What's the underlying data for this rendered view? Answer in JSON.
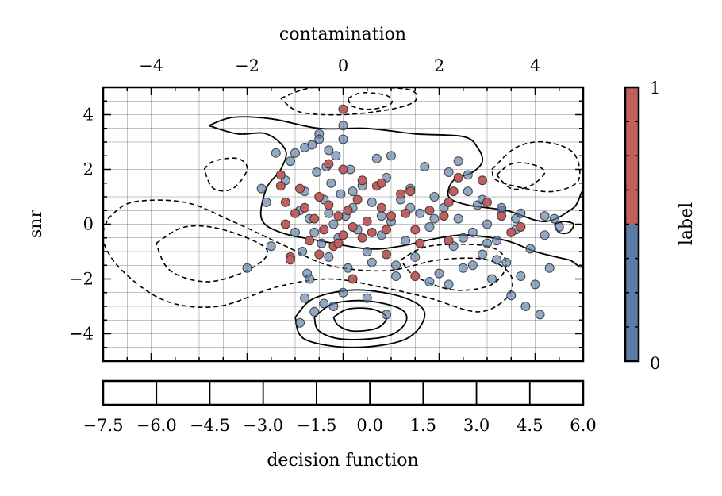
{
  "chart_data": {
    "type": "scatter",
    "xlabel_top": "contamination",
    "ylabel": "snr",
    "xlim": [
      -5,
      5
    ],
    "ylim": [
      -5,
      5
    ],
    "x_ticks": [
      "−4",
      "−2",
      "0",
      "2",
      "4"
    ],
    "x_tick_values": [
      -4,
      -2,
      0,
      2,
      4
    ],
    "y_ticks": [
      "4",
      "2",
      "0",
      "−2",
      "−4"
    ],
    "y_tick_values": [
      4,
      2,
      0,
      -2,
      -4
    ],
    "grid": true,
    "contours": {
      "solid": [
        [
          [
            -2.8,
            3.6
          ],
          [
            -2.3,
            3.9
          ],
          [
            -1.5,
            3.85
          ],
          [
            -0.5,
            3.5
          ],
          [
            0.5,
            3.5
          ],
          [
            1.5,
            3.3
          ],
          [
            2.5,
            3.2
          ],
          [
            2.8,
            2.8
          ],
          [
            2.9,
            2.3
          ],
          [
            2.7,
            1.9
          ],
          [
            2.3,
            1.6
          ],
          [
            2.2,
            1.0
          ],
          [
            2.6,
            0.7
          ],
          [
            3.4,
            0.5
          ],
          [
            4.2,
            0.1
          ],
          [
            4.8,
            0.6
          ],
          [
            5,
            1.1
          ],
          [
            5,
            -1.4
          ],
          [
            4.7,
            -1.3
          ],
          [
            4.0,
            -1.0
          ],
          [
            3.4,
            -0.6
          ],
          [
            2.6,
            -0.4
          ],
          [
            2.0,
            -0.5
          ],
          [
            1.2,
            -0.8
          ],
          [
            0.5,
            -0.9
          ],
          [
            -0.5,
            -0.6
          ],
          [
            -1.3,
            -0.3
          ],
          [
            -1.7,
            0.2
          ],
          [
            -1.6,
            1.3
          ],
          [
            -1.3,
            2.0
          ],
          [
            -1.2,
            2.7
          ],
          [
            -1.6,
            3.3
          ],
          [
            -2.2,
            3.3
          ],
          [
            -2.8,
            3.6
          ]
        ],
        [
          [
            -1.0,
            -3.4
          ],
          [
            -0.6,
            -2.7
          ],
          [
            0.3,
            -2.4
          ],
          [
            1.3,
            -2.7
          ],
          [
            1.7,
            -3.3
          ],
          [
            1.3,
            -4.2
          ],
          [
            0.2,
            -4.5
          ],
          [
            -0.8,
            -4.2
          ],
          [
            -1.0,
            -3.4
          ]
        ],
        [
          [
            -0.6,
            -3.4
          ],
          [
            -0.2,
            -2.9
          ],
          [
            0.5,
            -2.8
          ],
          [
            1.2,
            -3.1
          ],
          [
            1.3,
            -3.6
          ],
          [
            0.9,
            -4.1
          ],
          [
            0,
            -4.2
          ],
          [
            -0.5,
            -3.9
          ],
          [
            -0.6,
            -3.4
          ]
        ],
        [
          [
            -0.2,
            -3.4
          ],
          [
            0.1,
            -3.1
          ],
          [
            0.6,
            -3.1
          ],
          [
            0.9,
            -3.4
          ],
          [
            0.7,
            -3.8
          ],
          [
            0.2,
            -3.9
          ],
          [
            -0.1,
            -3.7
          ],
          [
            -0.2,
            -3.4
          ]
        ],
        [
          [
            4.4,
            0.0
          ],
          [
            4.6,
            0.1
          ],
          [
            4.8,
            0.0
          ],
          [
            4.7,
            -0.3
          ],
          [
            4.5,
            -0.3
          ],
          [
            4.4,
            0.0
          ]
        ]
      ],
      "dashed": [
        [
          [
            -1.3,
            4.6
          ],
          [
            -0.6,
            5.0
          ],
          [
            0.6,
            5.0
          ],
          [
            1.4,
            4.9
          ],
          [
            1.5,
            4.5
          ],
          [
            1.0,
            4.2
          ],
          [
            0,
            4.0
          ],
          [
            -0.9,
            4.1
          ],
          [
            -1.3,
            4.6
          ]
        ],
        [
          [
            0.1,
            4.6
          ],
          [
            0.4,
            4.8
          ],
          [
            0.9,
            4.7
          ],
          [
            1.0,
            4.4
          ],
          [
            0.6,
            4.2
          ],
          [
            0.2,
            4.3
          ],
          [
            0.1,
            4.6
          ]
        ],
        [
          [
            -2.9,
            2.0
          ],
          [
            -2.7,
            2.3
          ],
          [
            -2.2,
            2.4
          ],
          [
            -2.0,
            2.0
          ],
          [
            -2.3,
            1.3
          ],
          [
            -2.7,
            1.3
          ],
          [
            -2.9,
            2.0
          ]
        ],
        [
          [
            -4.9,
            0.2
          ],
          [
            -4.4,
            0.8
          ],
          [
            -3.3,
            0.8
          ],
          [
            -2.3,
            0.1
          ],
          [
            -1.2,
            -0.8
          ],
          [
            -0.3,
            -1.5
          ],
          [
            0.9,
            -1.7
          ],
          [
            2.0,
            -1.3
          ],
          [
            3.0,
            -1.3
          ],
          [
            3.5,
            -1.9
          ],
          [
            3.4,
            -2.7
          ],
          [
            2.8,
            -3.2
          ],
          [
            1.8,
            -2.7
          ],
          [
            0.8,
            -2.3
          ],
          [
            -0.3,
            -2.0
          ],
          [
            -1.4,
            -2.3
          ],
          [
            -2.6,
            -3.0
          ],
          [
            -3.7,
            -2.8
          ],
          [
            -4.6,
            -1.7
          ],
          [
            -5,
            -0.6
          ],
          [
            -4.9,
            0.2
          ]
        ],
        [
          [
            -3.9,
            -0.7
          ],
          [
            -3.3,
            -0.1
          ],
          [
            -2.5,
            -0.2
          ],
          [
            -1.6,
            -0.9
          ],
          [
            -1.9,
            -1.6
          ],
          [
            -2.8,
            -2.1
          ],
          [
            -3.6,
            -1.7
          ],
          [
            -3.9,
            -0.7
          ]
        ],
        [
          [
            1.2,
            -1.3
          ],
          [
            1.8,
            -0.8
          ],
          [
            3.0,
            -0.8
          ],
          [
            3.4,
            -1.4
          ],
          [
            3.1,
            -2.2
          ],
          [
            2.3,
            -2.4
          ],
          [
            1.5,
            -1.9
          ],
          [
            1.2,
            -1.3
          ]
        ],
        [
          [
            3.1,
            2.0
          ],
          [
            3.6,
            2.8
          ],
          [
            4.2,
            3.0
          ],
          [
            4.8,
            2.6
          ],
          [
            4.9,
            1.6
          ],
          [
            4.4,
            1.2
          ],
          [
            3.8,
            1.3
          ],
          [
            3.2,
            1.6
          ],
          [
            3.1,
            2.0
          ]
        ],
        [
          [
            3.2,
            1.8
          ],
          [
            3.5,
            2.2
          ],
          [
            3.9,
            2.2
          ],
          [
            4.2,
            1.9
          ],
          [
            3.9,
            1.4
          ],
          [
            3.5,
            1.3
          ],
          [
            3.2,
            1.8
          ]
        ]
      ]
    },
    "series": [
      {
        "label": "0",
        "color": "#5a7ba6",
        "points": [
          [
            -1.2,
            1.6
          ],
          [
            -1.1,
            2.3
          ],
          [
            -1.0,
            2.6
          ],
          [
            -0.9,
            0.5
          ],
          [
            -0.85,
            -1.0
          ],
          [
            -0.8,
            1.2
          ],
          [
            -0.75,
            -1.8
          ],
          [
            -0.7,
            0.2
          ],
          [
            -0.65,
            2.9
          ],
          [
            -0.6,
            -0.3
          ],
          [
            -0.55,
            1.9
          ],
          [
            -0.5,
            3.3
          ],
          [
            -0.45,
            -0.7
          ],
          [
            -0.4,
            0.9
          ],
          [
            -0.35,
            2.1
          ],
          [
            -0.3,
            -1.2
          ],
          [
            -0.25,
            1.5
          ],
          [
            -0.2,
            0.0
          ],
          [
            -0.15,
            2.5
          ],
          [
            -0.1,
            -0.5
          ],
          [
            -0.05,
            1.1
          ],
          [
            0.0,
            3.1
          ],
          [
            0.05,
            0.3
          ],
          [
            0.1,
            -1.6
          ],
          [
            0.15,
            2.0
          ],
          [
            0.2,
            0.6
          ],
          [
            0.3,
            -0.2
          ],
          [
            0.4,
            1.4
          ],
          [
            0.5,
            -1.0
          ],
          [
            0.6,
            0.8
          ],
          [
            0.7,
            2.4
          ],
          [
            0.8,
            -0.4
          ],
          [
            0.9,
            1.7
          ],
          [
            1.0,
            0.1
          ],
          [
            1.1,
            -1.5
          ],
          [
            1.2,
            0.9
          ],
          [
            1.3,
            -0.6
          ],
          [
            1.4,
            1.3
          ],
          [
            1.5,
            -1.2
          ],
          [
            1.6,
            0.4
          ],
          [
            1.7,
            2.1
          ],
          [
            1.8,
            -0.1
          ],
          [
            1.9,
            1.0
          ],
          [
            2.0,
            -1.8
          ],
          [
            2.1,
            0.6
          ],
          [
            2.2,
            1.9
          ],
          [
            2.3,
            -0.8
          ],
          [
            2.4,
            0.2
          ],
          [
            2.5,
            -1.6
          ],
          [
            2.6,
            1.2
          ],
          [
            2.7,
            -0.3
          ],
          [
            2.8,
            0.7
          ],
          [
            2.9,
            -1.1
          ],
          [
            3.0,
            0.0
          ],
          [
            3.1,
            -2.0
          ],
          [
            3.2,
            -0.6
          ],
          [
            3.3,
            0.5
          ],
          [
            3.4,
            -1.4
          ],
          [
            3.5,
            -2.6
          ],
          [
            3.6,
            -0.2
          ],
          [
            3.7,
            -1.9
          ],
          [
            3.8,
            -3.0
          ],
          [
            3.9,
            -0.9
          ],
          [
            4.0,
            -2.2
          ],
          [
            4.1,
            -3.3
          ],
          [
            4.2,
            -0.4
          ],
          [
            4.3,
            -1.6
          ],
          [
            4.4,
            0.2
          ],
          [
            4.5,
            -0.1
          ],
          [
            -0.8,
            -2.7
          ],
          [
            -0.6,
            -3.2
          ],
          [
            -0.4,
            -2.9
          ],
          [
            -0.2,
            -3.0
          ],
          [
            0.0,
            -2.5
          ],
          [
            0.5,
            -2.7
          ],
          [
            0.9,
            -3.3
          ],
          [
            -0.9,
            -3.6
          ],
          [
            -2.0,
            -1.6
          ],
          [
            -1.5,
            -0.8
          ],
          [
            -1.6,
            0.8
          ],
          [
            -1.7,
            1.3
          ],
          [
            -1.4,
            2.6
          ],
          [
            -1.0,
            -0.3
          ],
          [
            -0.3,
            0.4
          ],
          [
            0.2,
            1.2
          ],
          [
            1.0,
            2.5
          ],
          [
            2.4,
            2.3
          ],
          [
            2.6,
            1.8
          ],
          [
            2.9,
            0.9
          ],
          [
            3.3,
            0.6
          ],
          [
            3.6,
            0.2
          ],
          [
            3.7,
            0.4
          ],
          [
            4.2,
            0.3
          ],
          [
            -0.7,
            -2.0
          ],
          [
            0.6,
            -1.4
          ],
          [
            1.1,
            -1.9
          ],
          [
            1.8,
            -2.1
          ],
          [
            2.2,
            -2.2
          ],
          [
            2.7,
            -1.5
          ],
          [
            3.2,
            -1.3
          ],
          [
            0.0,
            3.6
          ],
          [
            -0.5,
            3.1
          ],
          [
            -0.8,
            2.8
          ],
          [
            -0.3,
            2.7
          ],
          [
            0.8,
            0.3
          ],
          [
            1.4,
            0.6
          ],
          [
            1.9,
            0.2
          ],
          [
            2.5,
            -0.5
          ],
          [
            3.0,
            -0.7
          ]
        ]
      },
      {
        "label": "1",
        "color": "#c0605e",
        "points": [
          [
            0.0,
            4.2
          ],
          [
            -1.3,
            1.8
          ],
          [
            -1.3,
            1.4
          ],
          [
            -1.2,
            0.8
          ],
          [
            -1.2,
            0.0
          ],
          [
            -1.1,
            -1.2
          ],
          [
            -1.0,
            0.4
          ],
          [
            -0.9,
            1.3
          ],
          [
            -0.8,
            0.6
          ],
          [
            -0.7,
            -0.6
          ],
          [
            -0.6,
            0.2
          ],
          [
            -0.5,
            1.0
          ],
          [
            -0.4,
            -0.2
          ],
          [
            -0.3,
            0.7
          ],
          [
            -0.2,
            -0.8
          ],
          [
            -0.1,
            0.3
          ],
          [
            0.0,
            -0.4
          ],
          [
            0.1,
            0.5
          ],
          [
            0.2,
            -0.1
          ],
          [
            0.3,
            0.9
          ],
          [
            0.4,
            -0.5
          ],
          [
            0.5,
            0.1
          ],
          [
            0.6,
            -0.3
          ],
          [
            0.7,
            1.4
          ],
          [
            0.8,
            0.6
          ],
          [
            0.9,
            -0.2
          ],
          [
            1.0,
            0.3
          ],
          [
            1.2,
            1.1
          ],
          [
            1.3,
            0.4
          ],
          [
            1.5,
            -0.2
          ],
          [
            1.6,
            -0.7
          ],
          [
            1.8,
            0.5
          ],
          [
            2.1,
            0.3
          ],
          [
            2.2,
            -0.6
          ],
          [
            2.3,
            1.2
          ],
          [
            2.4,
            1.7
          ],
          [
            2.9,
            1.6
          ],
          [
            3.0,
            0.8
          ],
          [
            3.3,
            0.3
          ],
          [
            3.5,
            -0.3
          ],
          [
            3.7,
            -0.1
          ],
          [
            -1.1,
            -1.3
          ],
          [
            -0.5,
            -1.1
          ],
          [
            0.2,
            -2.0
          ],
          [
            0.9,
            -1.1
          ],
          [
            1.5,
            -1.9
          ],
          [
            0.0,
            2.0
          ],
          [
            -0.3,
            2.2
          ],
          [
            0.4,
            1.6
          ],
          [
            0.8,
            1.5
          ],
          [
            1.4,
            1.2
          ],
          [
            2.2,
            0.8
          ],
          [
            -0.1,
            -0.7
          ]
        ]
      }
    ],
    "colorbar": {
      "label": "label",
      "ticks": [
        "1",
        "0"
      ],
      "colors": [
        "#c0605e",
        "#5a7ba6"
      ],
      "boundary": 0.5
    },
    "bottom_axis": {
      "label": "decision function",
      "ticks": [
        "−7.5",
        "−6.0",
        "−4.5",
        "−3.0",
        "−1.5",
        "0.0",
        "1.5",
        "3.0",
        "4.5",
        "6.0"
      ],
      "tick_values": [
        -7.5,
        -6.0,
        -4.5,
        -3.0,
        -1.5,
        0.0,
        1.5,
        3.0,
        4.5,
        6.0
      ],
      "range": [
        -7.5,
        6.0
      ]
    }
  }
}
